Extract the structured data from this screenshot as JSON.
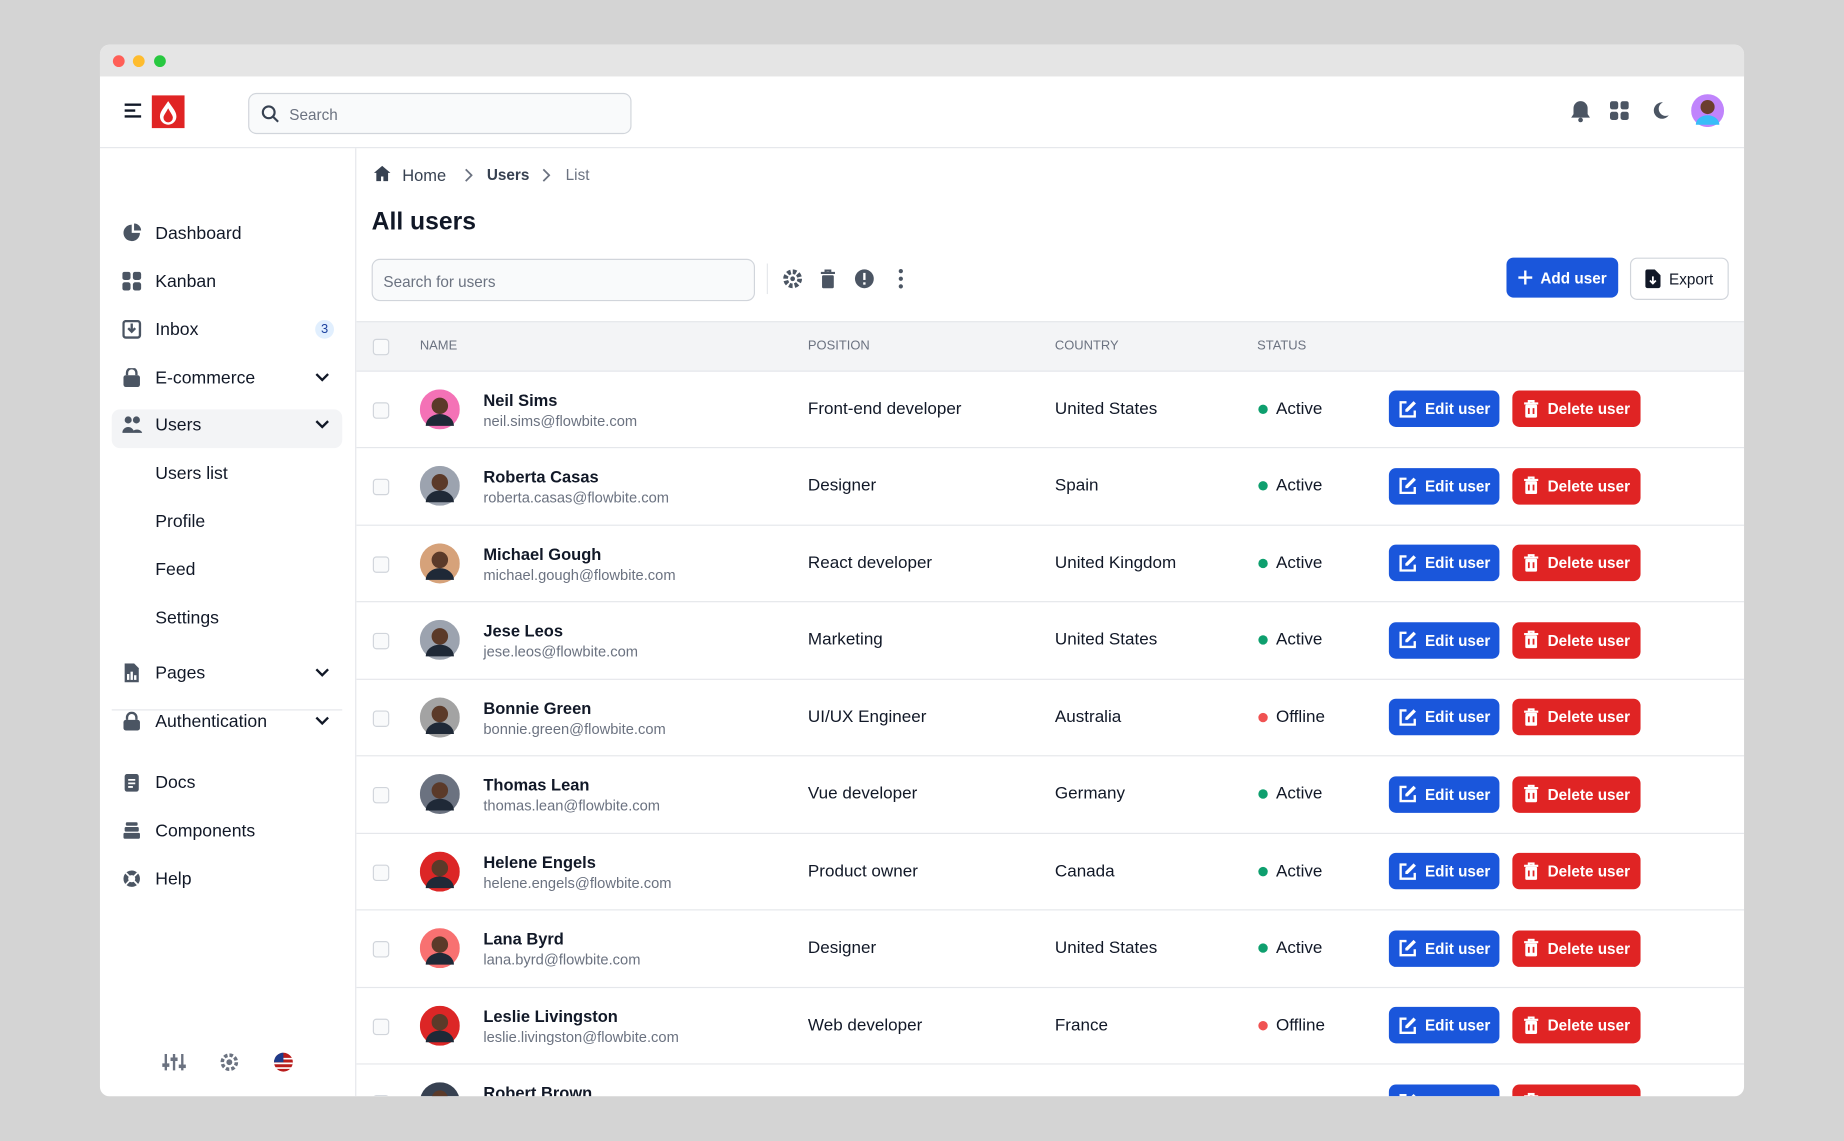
{
  "header": {
    "search_placeholder": "Search"
  },
  "sidebar": {
    "items": [
      {
        "label": "Dashboard"
      },
      {
        "label": "Kanban"
      },
      {
        "label": "Inbox",
        "badge": "3"
      },
      {
        "label": "E-commerce"
      },
      {
        "label": "Users"
      },
      {
        "label": "Users list"
      },
      {
        "label": "Profile"
      },
      {
        "label": "Feed"
      },
      {
        "label": "Settings"
      },
      {
        "label": "Pages"
      },
      {
        "label": "Authentication"
      },
      {
        "label": "Docs"
      },
      {
        "label": "Components"
      },
      {
        "label": "Help"
      }
    ]
  },
  "breadcrumb": [
    "Home",
    "Users",
    "List"
  ],
  "title": "All users",
  "toolbar": {
    "search_placeholder": "Search for users",
    "add": "Add user",
    "export": "Export"
  },
  "table": {
    "headers": [
      "NAME",
      "POSITION",
      "COUNTRY",
      "STATUS"
    ],
    "actions": {
      "edit": "Edit user",
      "delete": "Delete user"
    },
    "rows": [
      {
        "name": "Neil Sims",
        "email": "neil.sims@flowbite.com",
        "position": "Front-end developer",
        "country": "United States",
        "status": "Active",
        "status_color": "#0e9f6e"
      },
      {
        "name": "Roberta Casas",
        "email": "roberta.casas@flowbite.com",
        "position": "Designer",
        "country": "Spain",
        "status": "Active",
        "status_color": "#0e9f6e"
      },
      {
        "name": "Michael Gough",
        "email": "michael.gough@flowbite.com",
        "position": "React developer",
        "country": "United Kingdom",
        "status": "Active",
        "status_color": "#0e9f6e"
      },
      {
        "name": "Jese Leos",
        "email": "jese.leos@flowbite.com",
        "position": "Marketing",
        "country": "United States",
        "status": "Active",
        "status_color": "#0e9f6e"
      },
      {
        "name": "Bonnie Green",
        "email": "bonnie.green@flowbite.com",
        "position": "UI/UX Engineer",
        "country": "Australia",
        "status": "Offline",
        "status_color": "#f05252"
      },
      {
        "name": "Thomas Lean",
        "email": "thomas.lean@flowbite.com",
        "position": "Vue developer",
        "country": "Germany",
        "status": "Active",
        "status_color": "#0e9f6e"
      },
      {
        "name": "Helene Engels",
        "email": "helene.engels@flowbite.com",
        "position": "Product owner",
        "country": "Canada",
        "status": "Active",
        "status_color": "#0e9f6e"
      },
      {
        "name": "Lana Byrd",
        "email": "lana.byrd@flowbite.com",
        "position": "Designer",
        "country": "United States",
        "status": "Active",
        "status_color": "#0e9f6e"
      },
      {
        "name": "Leslie Livingston",
        "email": "leslie.livingston@flowbite.com",
        "position": "Web developer",
        "country": "France",
        "status": "Offline",
        "status_color": "#f05252"
      },
      {
        "name": "Robert Brown"
      }
    ]
  }
}
